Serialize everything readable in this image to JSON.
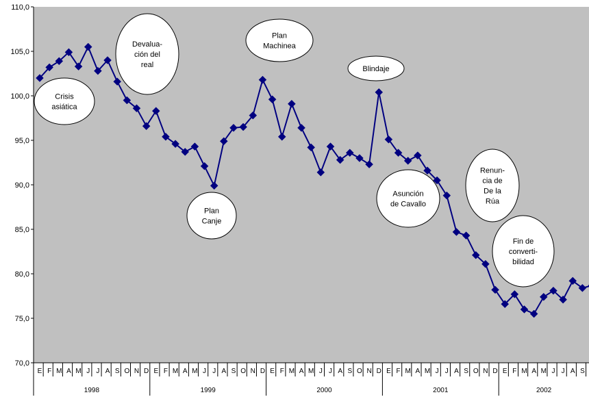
{
  "chart_data": {
    "type": "line",
    "title": "",
    "xlabel": "",
    "ylabel": "",
    "ylim": [
      70,
      110
    ],
    "yticks": [
      "70,0",
      "75,0",
      "80,0",
      "85,0",
      "90,0",
      "95,0",
      "100,0",
      "105,0",
      "110,0"
    ],
    "months": [
      "E",
      "F",
      "M",
      "A",
      "M",
      "J",
      "J",
      "A",
      "S",
      "O",
      "N",
      "D",
      "E",
      "F",
      "M",
      "A",
      "M",
      "J",
      "J",
      "A",
      "S",
      "O",
      "N",
      "D",
      "E",
      "F",
      "M",
      "A",
      "M",
      "J",
      "J",
      "A",
      "S",
      "O",
      "N",
      "D",
      "E",
      "F",
      "M",
      "A",
      "M",
      "J",
      "J",
      "A",
      "S",
      "O",
      "N",
      "D",
      "E",
      "F",
      "M",
      "A",
      "M",
      "J",
      "J",
      "A",
      "S",
      "O"
    ],
    "years": [
      "1998",
      "1999",
      "2000",
      "2001",
      "2002"
    ],
    "colors": {
      "line": "#000080",
      "plot_bg": "#c0c0c0"
    },
    "series": [
      {
        "values": [
          102.0,
          103.2,
          103.9,
          104.9,
          103.3,
          105.5,
          102.8,
          104.0,
          101.6,
          99.5,
          98.6,
          96.6,
          98.3,
          95.4,
          94.6,
          93.7,
          94.3,
          92.1,
          89.9,
          94.9,
          96.4,
          96.5,
          97.8,
          101.8,
          99.6,
          95.4,
          99.1,
          96.4,
          94.2,
          91.4,
          94.3,
          92.8,
          93.6,
          93.0,
          92.3,
          100.4,
          95.1,
          93.6,
          92.7,
          93.3,
          91.6,
          90.5,
          88.8,
          84.7,
          84.3,
          82.1,
          81.1,
          78.2,
          76.6,
          77.7,
          76.0,
          75.5,
          77.4,
          78.1,
          77.1,
          79.2,
          78.4,
          78.7
        ]
      }
    ],
    "annotations": [
      {
        "lines": [
          "Crisis",
          "asiática"
        ]
      },
      {
        "lines": [
          "Devalua-",
          "ción del",
          "real"
        ]
      },
      {
        "lines": [
          "Plan",
          "Machinea"
        ]
      },
      {
        "lines": [
          "Blindaje"
        ]
      },
      {
        "lines": [
          "Plan",
          "Canje"
        ]
      },
      {
        "lines": [
          "Asunción",
          "de Cavallo"
        ]
      },
      {
        "lines": [
          "Renun-",
          "cia de",
          "De la",
          "Rúa"
        ]
      },
      {
        "lines": [
          "Fin de",
          "converti-",
          "bilidad"
        ]
      }
    ]
  }
}
